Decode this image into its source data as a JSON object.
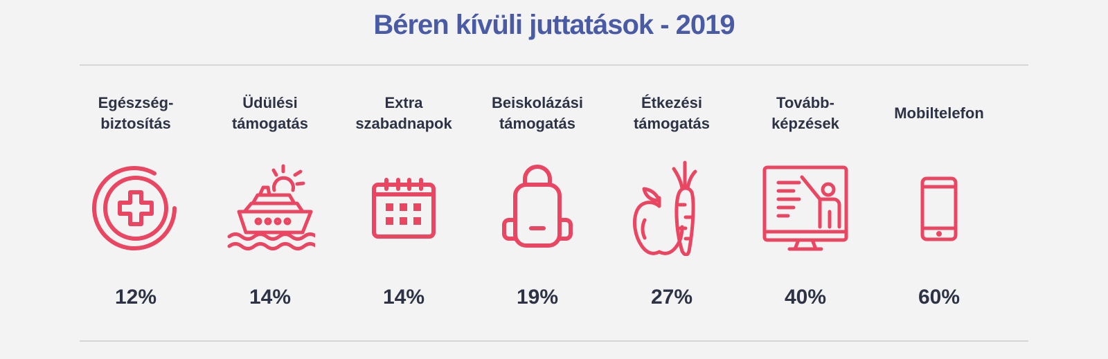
{
  "title": "Béren kívüli juttatások - 2019",
  "accent_color": "#ea4561",
  "title_color": "#4a5ba6",
  "benefits": [
    {
      "label": "Egészség-\nbiztosítás",
      "value": "12%",
      "icon": "medical-cross-icon"
    },
    {
      "label": "Üdülési\ntámogatás",
      "value": "14%",
      "icon": "cruise-ship-icon"
    },
    {
      "label": "Extra\nszabadnapok",
      "value": "14%",
      "icon": "calendar-icon"
    },
    {
      "label": "Beiskolázási\ntámogatás",
      "value": "19%",
      "icon": "backpack-icon"
    },
    {
      "label": "Étkezési\ntámogatás",
      "value": "27%",
      "icon": "apple-carrot-icon"
    },
    {
      "label": "Tovább-\nképzések",
      "value": "40%",
      "icon": "presentation-screen-icon"
    },
    {
      "label": "Mobiltelefon",
      "value": "60%",
      "icon": "mobile-phone-icon"
    }
  ]
}
